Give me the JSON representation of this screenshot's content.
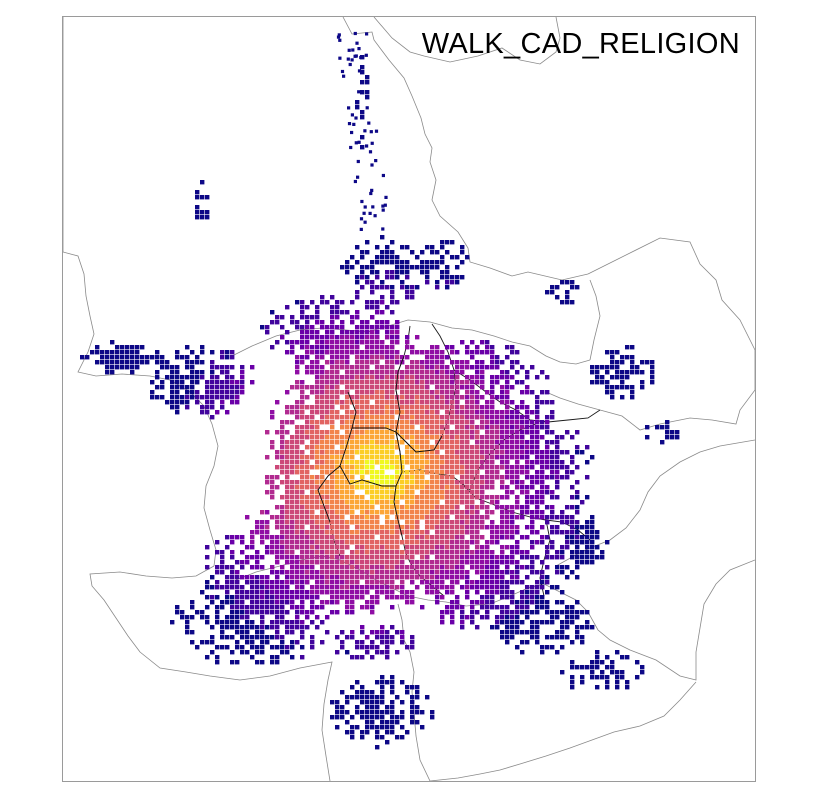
{
  "map": {
    "title": "WALK_CAD_RELIGION",
    "colormap": "plasma",
    "palette": [
      "#0d0887",
      "#41049d",
      "#6a00a8",
      "#8f0da4",
      "#b12a90",
      "#cc4778",
      "#e16462",
      "#f2844b",
      "#fca636",
      "#fcce25",
      "#f0f921"
    ],
    "background": "#ffffff",
    "boundary_color": "#808080",
    "district_color": "#000000"
  }
}
